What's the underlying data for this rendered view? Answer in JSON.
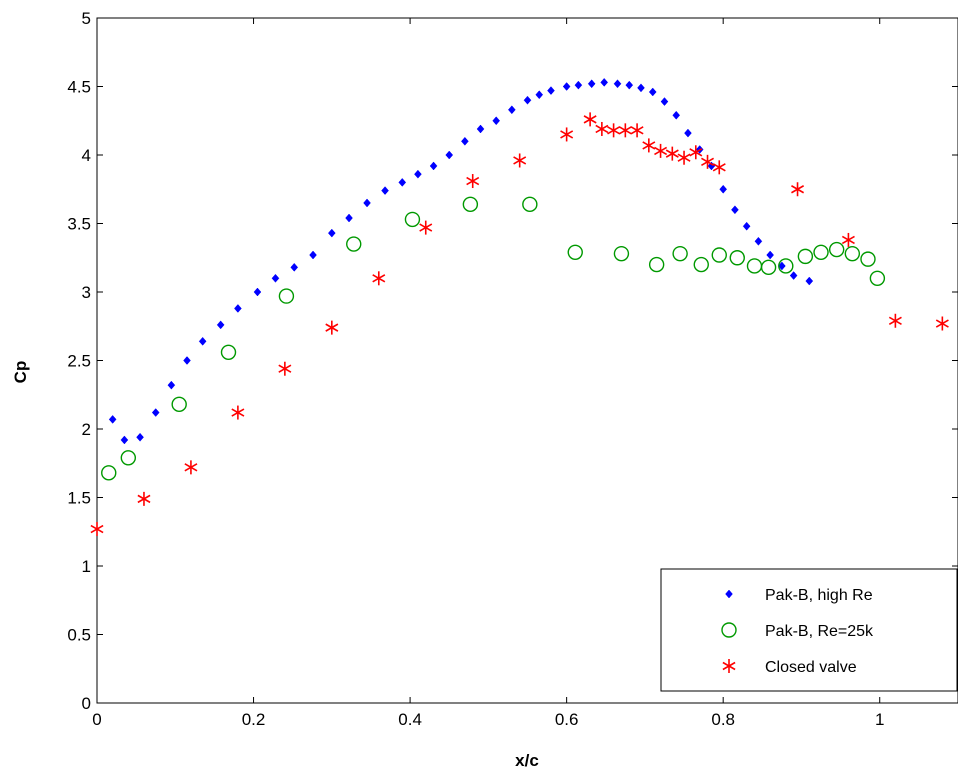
{
  "chart_data": {
    "type": "scatter",
    "title": "",
    "xlabel": "x/c",
    "ylabel": "Cp",
    "xlim": [
      0,
      1.1
    ],
    "ylim": [
      0,
      5
    ],
    "xticks": [
      "0",
      "0.2",
      "0.4",
      "0.6",
      "0.8",
      "1"
    ],
    "yticks": [
      "0",
      "0.5",
      "1",
      "1.5",
      "2",
      "2.5",
      "3",
      "3.5",
      "4",
      "4.5",
      "5"
    ],
    "grid": false,
    "legend_position": "bottom-right",
    "series": [
      {
        "name": "Pak-B, high Re",
        "marker": "dot",
        "color": "#0000ff",
        "points": [
          [
            0.02,
            2.07
          ],
          [
            0.035,
            1.92
          ],
          [
            0.055,
            1.94
          ],
          [
            0.075,
            2.12
          ],
          [
            0.095,
            2.32
          ],
          [
            0.115,
            2.5
          ],
          [
            0.135,
            2.64
          ],
          [
            0.158,
            2.76
          ],
          [
            0.18,
            2.88
          ],
          [
            0.205,
            3.0
          ],
          [
            0.228,
            3.1
          ],
          [
            0.252,
            3.18
          ],
          [
            0.276,
            3.27
          ],
          [
            0.3,
            3.43
          ],
          [
            0.322,
            3.54
          ],
          [
            0.345,
            3.65
          ],
          [
            0.368,
            3.74
          ],
          [
            0.39,
            3.8
          ],
          [
            0.41,
            3.86
          ],
          [
            0.43,
            3.92
          ],
          [
            0.45,
            4.0
          ],
          [
            0.47,
            4.1
          ],
          [
            0.49,
            4.19
          ],
          [
            0.51,
            4.25
          ],
          [
            0.53,
            4.33
          ],
          [
            0.55,
            4.4
          ],
          [
            0.565,
            4.44
          ],
          [
            0.58,
            4.47
          ],
          [
            0.6,
            4.5
          ],
          [
            0.615,
            4.51
          ],
          [
            0.632,
            4.52
          ],
          [
            0.648,
            4.53
          ],
          [
            0.665,
            4.52
          ],
          [
            0.68,
            4.51
          ],
          [
            0.695,
            4.49
          ],
          [
            0.71,
            4.46
          ],
          [
            0.725,
            4.39
          ],
          [
            0.74,
            4.29
          ],
          [
            0.755,
            4.16
          ],
          [
            0.77,
            4.04
          ],
          [
            0.785,
            3.92
          ],
          [
            0.8,
            3.75
          ],
          [
            0.815,
            3.6
          ],
          [
            0.83,
            3.48
          ],
          [
            0.845,
            3.37
          ],
          [
            0.86,
            3.27
          ],
          [
            0.875,
            3.19
          ],
          [
            0.89,
            3.12
          ],
          [
            0.91,
            3.08
          ]
        ]
      },
      {
        "name": "Pak-B, Re=25k",
        "marker": "circle",
        "color": "#009900",
        "points": [
          [
            0.015,
            1.68
          ],
          [
            0.04,
            1.79
          ],
          [
            0.105,
            2.18
          ],
          [
            0.168,
            2.56
          ],
          [
            0.242,
            2.97
          ],
          [
            0.328,
            3.35
          ],
          [
            0.403,
            3.53
          ],
          [
            0.477,
            3.64
          ],
          [
            0.553,
            3.64
          ],
          [
            0.611,
            3.29
          ],
          [
            0.67,
            3.28
          ],
          [
            0.715,
            3.2
          ],
          [
            0.745,
            3.28
          ],
          [
            0.772,
            3.2
          ],
          [
            0.795,
            3.27
          ],
          [
            0.818,
            3.25
          ],
          [
            0.84,
            3.19
          ],
          [
            0.858,
            3.18
          ],
          [
            0.88,
            3.19
          ],
          [
            0.905,
            3.26
          ],
          [
            0.925,
            3.29
          ],
          [
            0.945,
            3.31
          ],
          [
            0.965,
            3.28
          ],
          [
            0.985,
            3.24
          ],
          [
            0.997,
            3.1
          ]
        ]
      },
      {
        "name": "Closed valve",
        "marker": "star",
        "color": "#ff0000",
        "points": [
          [
            0.0,
            1.27
          ],
          [
            0.06,
            1.49
          ],
          [
            0.12,
            1.72
          ],
          [
            0.18,
            2.12
          ],
          [
            0.24,
            2.44
          ],
          [
            0.3,
            2.74
          ],
          [
            0.36,
            3.1
          ],
          [
            0.42,
            3.47
          ],
          [
            0.48,
            3.81
          ],
          [
            0.54,
            3.96
          ],
          [
            0.6,
            4.15
          ],
          [
            0.63,
            4.26
          ],
          [
            0.645,
            4.19
          ],
          [
            0.66,
            4.18
          ],
          [
            0.675,
            4.18
          ],
          [
            0.69,
            4.18
          ],
          [
            0.705,
            4.07
          ],
          [
            0.72,
            4.03
          ],
          [
            0.735,
            4.01
          ],
          [
            0.75,
            3.98
          ],
          [
            0.765,
            4.02
          ],
          [
            0.78,
            3.95
          ],
          [
            0.795,
            3.91
          ],
          [
            0.895,
            3.75
          ],
          [
            0.96,
            3.38
          ],
          [
            1.02,
            2.79
          ],
          [
            1.08,
            2.77
          ]
        ]
      }
    ]
  }
}
